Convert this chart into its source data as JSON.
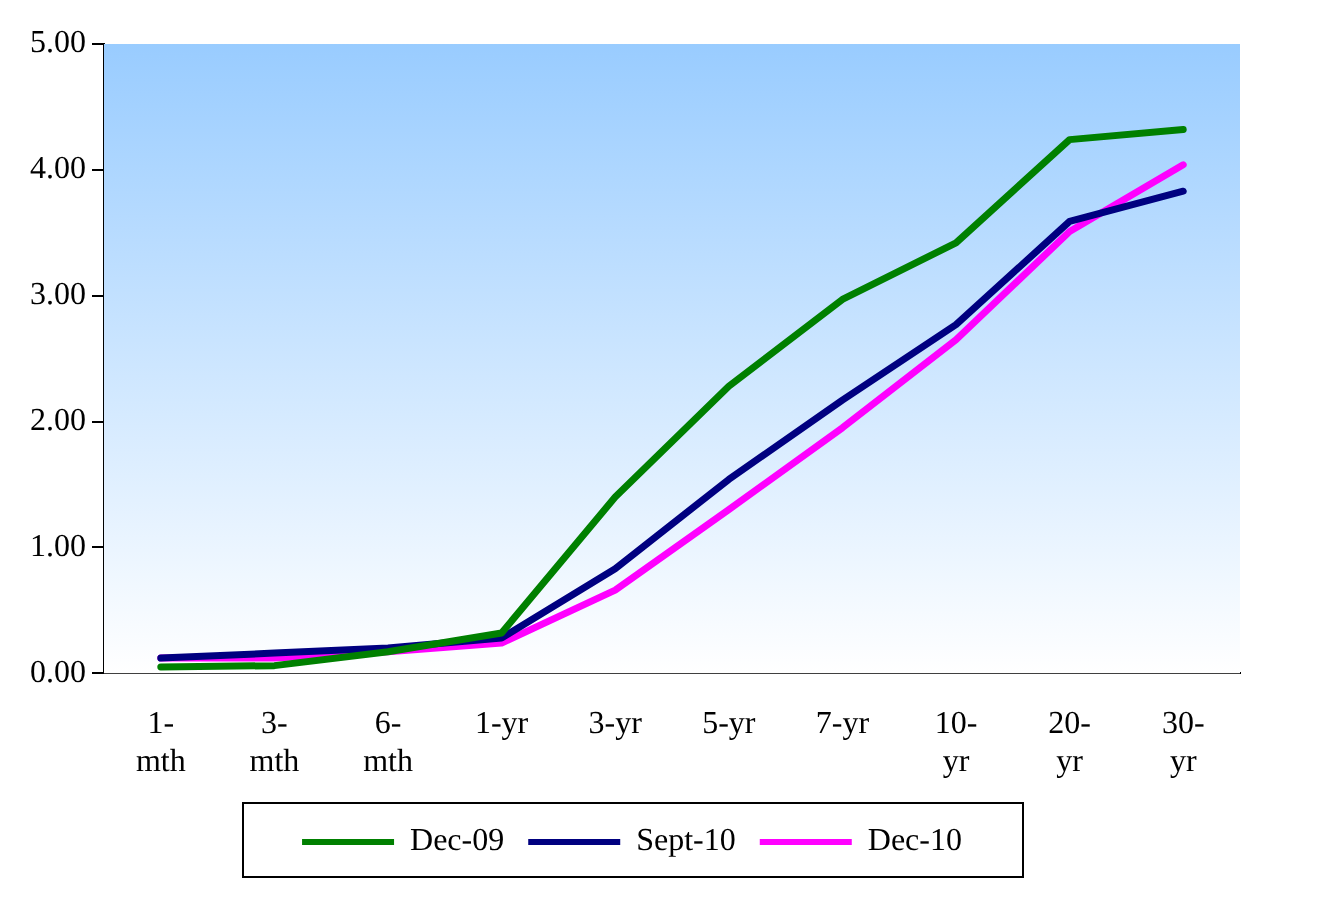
{
  "chart_data": {
    "type": "line",
    "categories": [
      "1- mth",
      "3- mth",
      "6- mth",
      "1-yr",
      "3-yr",
      "5-yr",
      "7-yr",
      "10- yr",
      "20- yr",
      "30- yr"
    ],
    "series": [
      {
        "name": "Dec-09",
        "color": "#008000",
        "values": [
          0.05,
          0.06,
          0.17,
          0.32,
          1.4,
          2.28,
          2.97,
          3.42,
          4.24,
          4.32
        ]
      },
      {
        "name": "Sept-10",
        "color": "#000080",
        "values": [
          0.12,
          0.16,
          0.2,
          0.28,
          0.83,
          1.54,
          2.17,
          2.77,
          3.59,
          3.83
        ]
      },
      {
        "name": "Dec-10",
        "color": "#ff00ff",
        "values": [
          0.12,
          0.12,
          0.17,
          0.24,
          0.66,
          1.3,
          1.95,
          2.65,
          3.51,
          4.04
        ]
      }
    ],
    "ylim": [
      0,
      5
    ],
    "yticks": [
      {
        "value": 0,
        "label": "0.00"
      },
      {
        "value": 1,
        "label": "1.00"
      },
      {
        "value": 2,
        "label": "2.00"
      },
      {
        "value": 3,
        "label": "3.00"
      },
      {
        "value": 4,
        "label": "4.00"
      },
      {
        "value": 5,
        "label": "5.00"
      }
    ],
    "grid": false,
    "legend": "bottom",
    "marker": "none",
    "line_style": "solid"
  }
}
